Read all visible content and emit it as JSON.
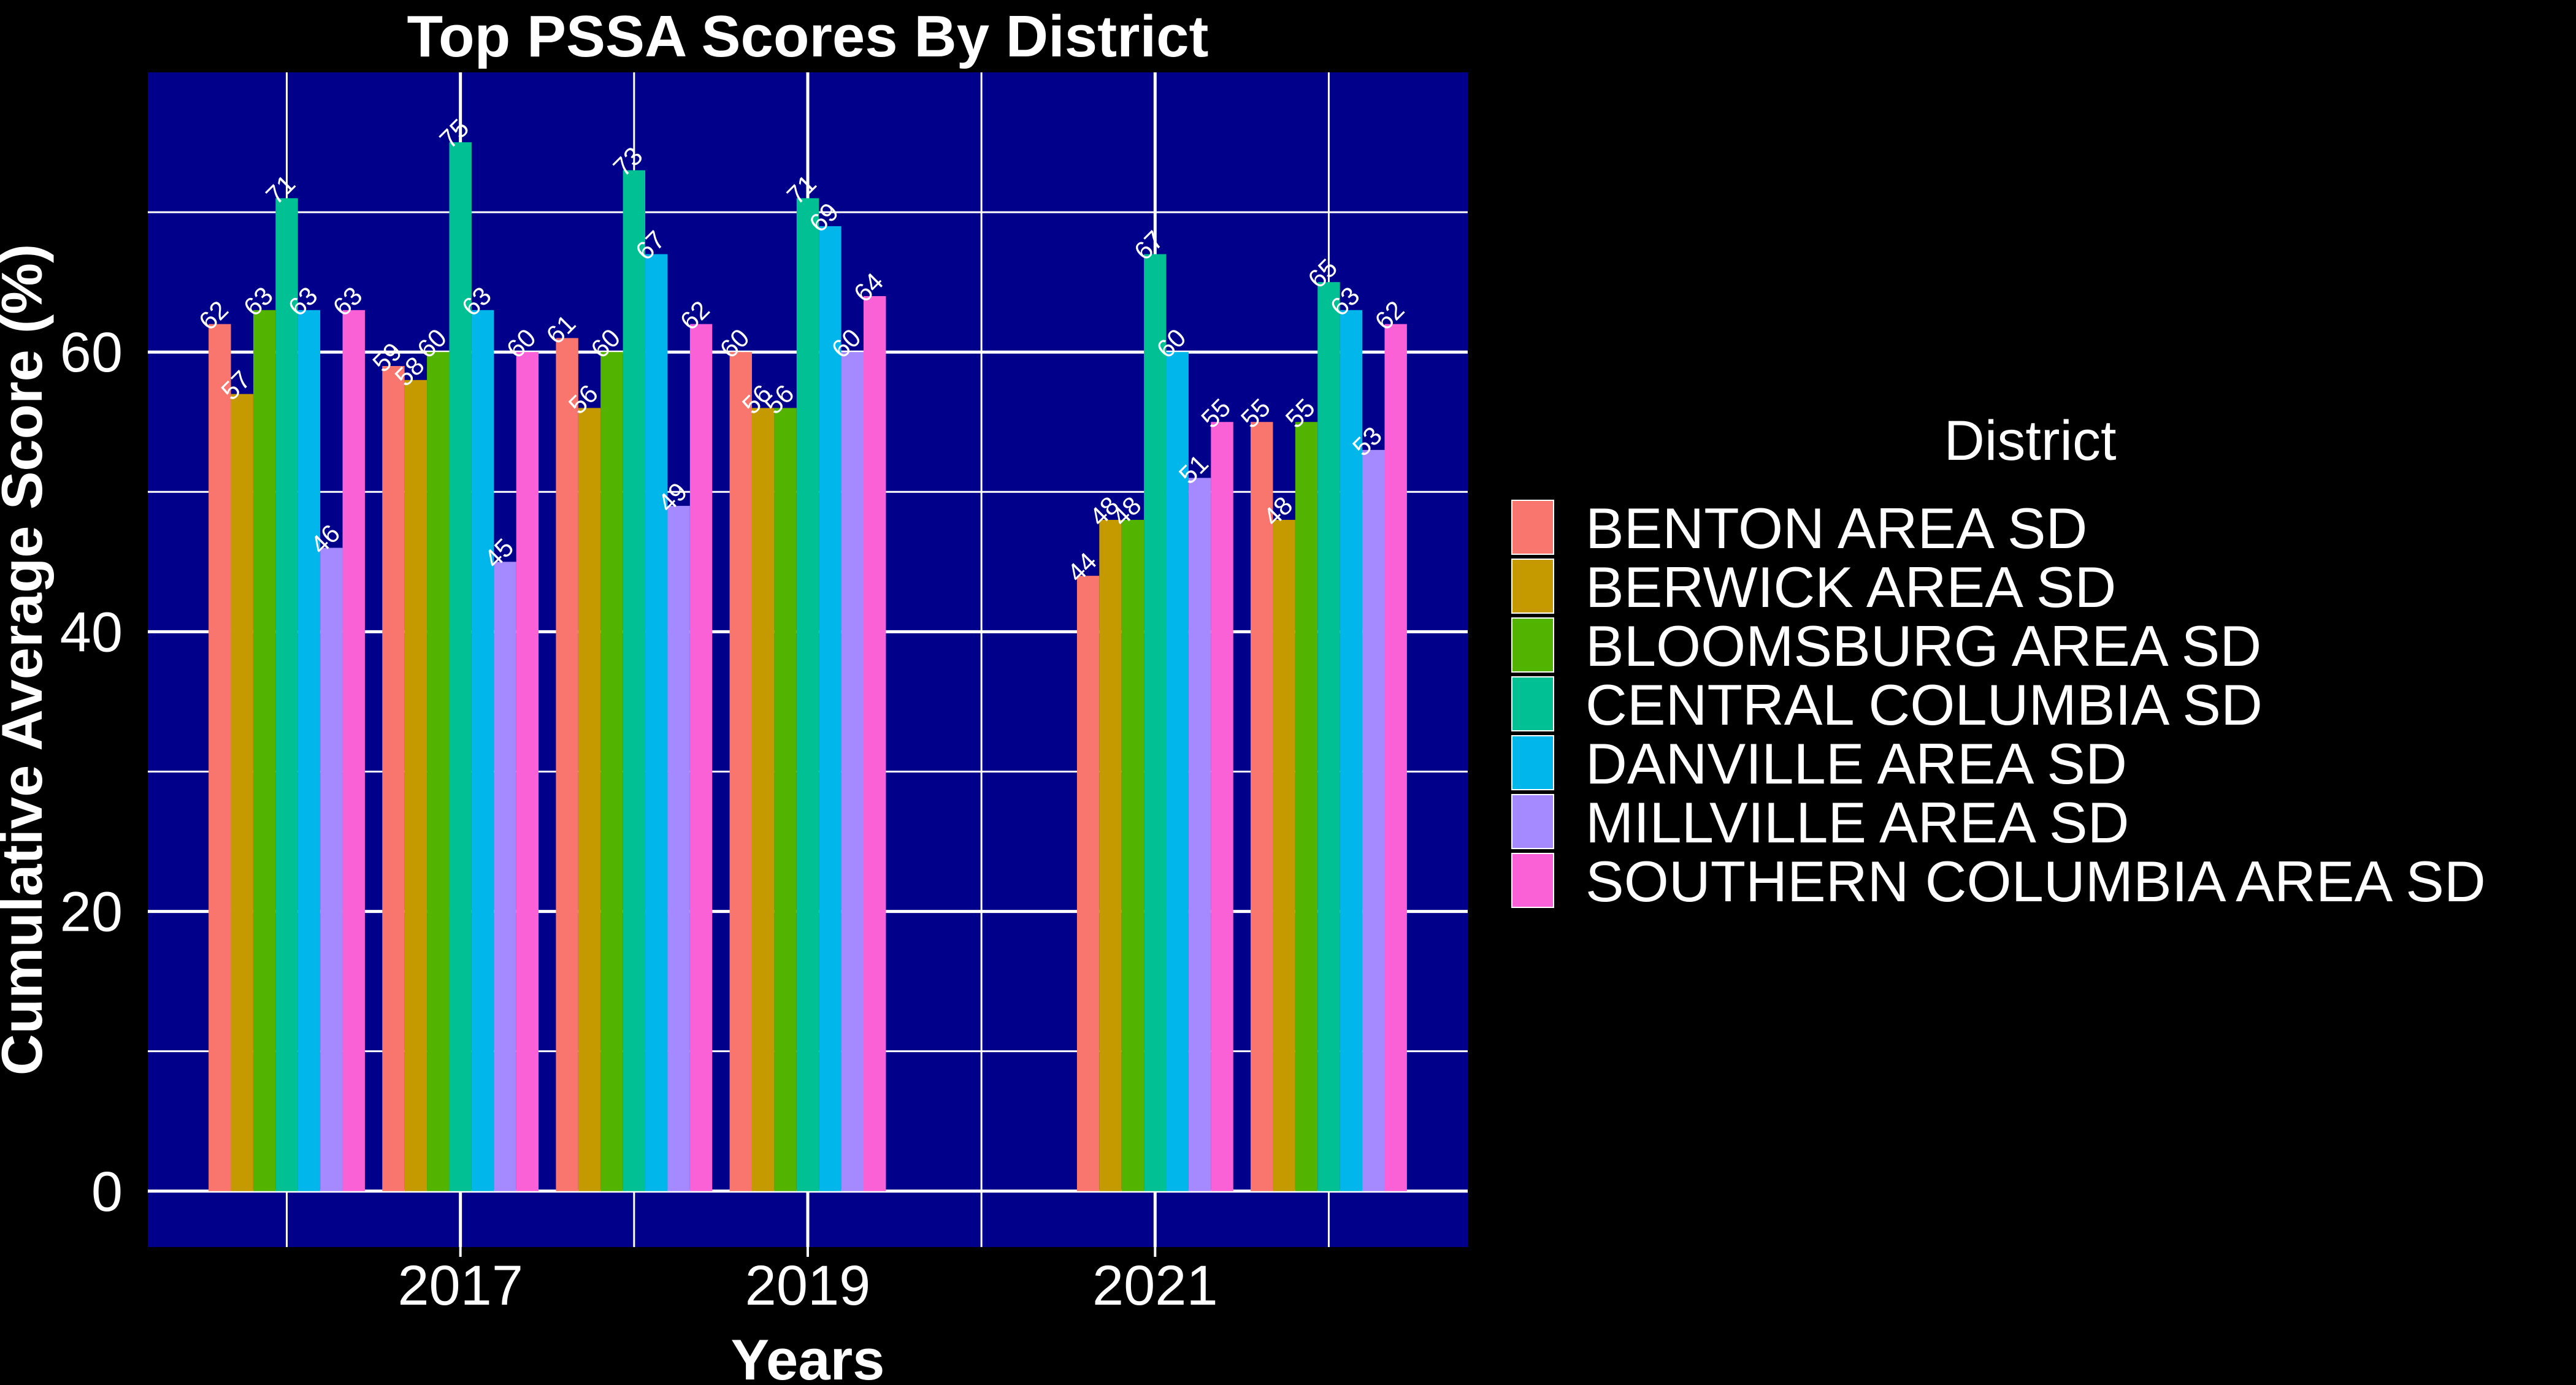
{
  "chart_data": {
    "type": "bar",
    "title": "Top PSSA Scores By District",
    "xlabel": "Years",
    "ylabel": "Cumulative Average Score (%)",
    "x_tick_labels": [
      {
        "label": "2017",
        "x": 2017
      },
      {
        "label": "2019",
        "x": 2019
      },
      {
        "label": "2021",
        "x": 2021
      }
    ],
    "y_ticks": [
      0,
      20,
      40,
      60
    ],
    "ylim": [
      -4,
      80
    ],
    "xlim": [
      2015.2,
      2022.8
    ],
    "bar_group_width": 0.9,
    "grid": true,
    "legend_position": "right",
    "legend_title": "District",
    "colors": {
      "background": "#000000",
      "panel": "#00008B",
      "grid": "#FFFFFF",
      "text": "#FFFFFF"
    },
    "categories": [
      2016,
      2017,
      2018,
      2019,
      2021,
      2022
    ],
    "series": [
      {
        "name": "BENTON AREA SD",
        "color": "#F8766D",
        "values": [
          62,
          59,
          61,
          60,
          44,
          55
        ]
      },
      {
        "name": "BERWICK AREA SD",
        "color": "#C49A00",
        "values": [
          57,
          58,
          56,
          56,
          48,
          48
        ]
      },
      {
        "name": "BLOOMSBURG AREA SD",
        "color": "#53B400",
        "values": [
          63,
          60,
          60,
          56,
          48,
          55
        ]
      },
      {
        "name": "CENTRAL COLUMBIA SD",
        "color": "#00C094",
        "values": [
          71,
          75,
          73,
          71,
          67,
          65
        ]
      },
      {
        "name": "DANVILLE AREA SD",
        "color": "#00B6EB",
        "values": [
          63,
          63,
          67,
          69,
          60,
          63
        ]
      },
      {
        "name": "MILLVILLE AREA SD",
        "color": "#A58AFF",
        "values": [
          46,
          45,
          49,
          60,
          51,
          53
        ]
      },
      {
        "name": "SOUTHERN COLUMBIA AREA SD",
        "color": "#FB61D7",
        "values": [
          63,
          60,
          62,
          64,
          55,
          62
        ]
      }
    ]
  }
}
